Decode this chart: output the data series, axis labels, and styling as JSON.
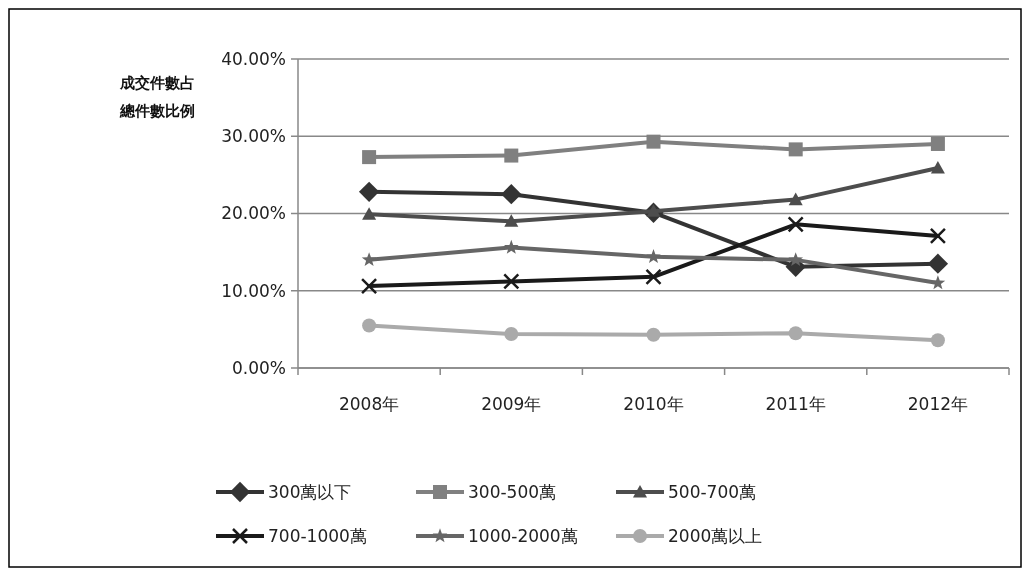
{
  "chart_data": {
    "type": "line",
    "ylabel": "成交件數占總件數比例",
    "categories": [
      "2008年",
      "2009年",
      "2010年",
      "2011年",
      "2012年"
    ],
    "ylim": [
      0,
      40
    ],
    "yticks": [
      {
        "value": 0,
        "label": "0.00%"
      },
      {
        "value": 10,
        "label": "10.00%"
      },
      {
        "value": 20,
        "label": "20.00%"
      },
      {
        "value": 30,
        "label": "30.00%"
      },
      {
        "value": 40,
        "label": "40.00%"
      }
    ],
    "grid": "y",
    "legend": "bottom",
    "line_style": "solid",
    "series": [
      {
        "name": "300萬以下",
        "color": "#333333",
        "marker": "diamond",
        "values": [
          22.8,
          22.5,
          20.1,
          13.1,
          13.5
        ]
      },
      {
        "name": "300-500萬",
        "color": "#808080",
        "marker": "square",
        "values": [
          27.3,
          27.5,
          29.3,
          28.3,
          29.0
        ]
      },
      {
        "name": "500-700萬",
        "color": "#4d4d4d",
        "marker": "triangle",
        "values": [
          19.9,
          19.0,
          20.3,
          21.8,
          25.9
        ]
      },
      {
        "name": "700-1000萬",
        "color": "#1a1a1a",
        "marker": "cross",
        "values": [
          10.6,
          11.2,
          11.8,
          18.6,
          17.1
        ]
      },
      {
        "name": "1000-2000萬",
        "color": "#666666",
        "marker": "star",
        "values": [
          14.0,
          15.6,
          14.4,
          14.0,
          11.0
        ]
      },
      {
        "name": "2000萬以上",
        "color": "#aaaaaa",
        "marker": "circle",
        "values": [
          5.5,
          4.4,
          4.3,
          4.5,
          3.6
        ]
      }
    ]
  }
}
